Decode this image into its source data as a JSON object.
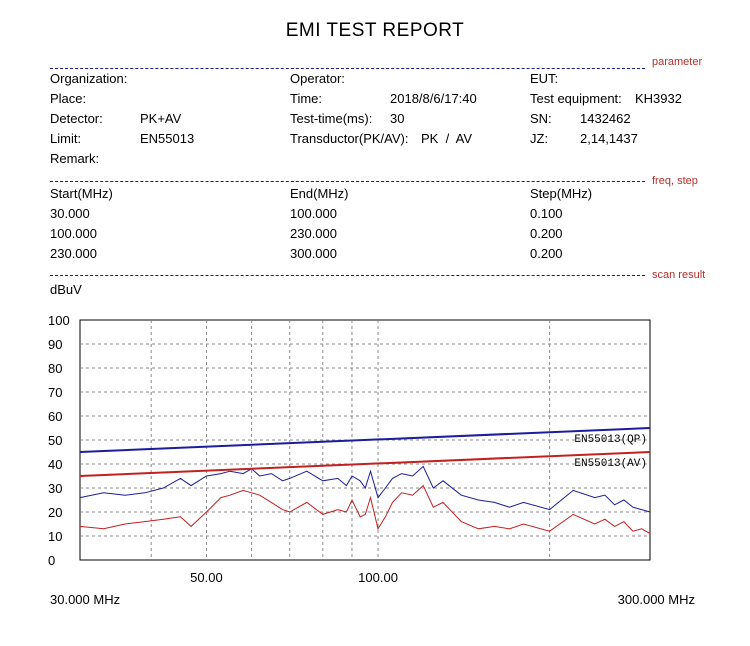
{
  "report": {
    "title": "EMI TEST REPORT",
    "sections": {
      "parameter": "parameter",
      "freq_step": "freq, step",
      "scan_result": "scan result"
    },
    "parameters": {
      "organization_label": "Organization:",
      "place_label": "Place:",
      "detector_label": "Detector:",
      "detector_value": "PK+AV",
      "limit_label": "Limit:",
      "limit_value": "EN55013",
      "remark_label": "Remark:",
      "operator_label": "Operator:",
      "time_label": "Time:",
      "time_value": "2018/8/6/17:40",
      "test_time_label": "Test-time(ms):",
      "test_time_value": "30",
      "transductor_label": "Transductor(PK/AV):",
      "transductor_value": "PK  /  AV",
      "eut_label": "EUT:",
      "test_equipment_label": "Test equipment:",
      "test_equipment_value": "KH3932",
      "sn_label": "SN:",
      "sn_value": "1432462",
      "jz_label": "JZ:",
      "jz_value": "2,14,1437"
    },
    "freq_table": {
      "headers": [
        "Start(MHz)",
        "End(MHz)",
        "Step(MHz)"
      ],
      "rows": [
        [
          "30.000",
          "100.000",
          "0.100"
        ],
        [
          "100.000",
          "230.000",
          "0.200"
        ],
        [
          "230.000",
          "300.000",
          "0.200"
        ]
      ]
    }
  },
  "chart_data": {
    "type": "line",
    "ylabel": "dBuV",
    "ylim": [
      0,
      100
    ],
    "yticks": [
      "100",
      "90",
      "80",
      "70",
      "60",
      "50",
      "40",
      "30",
      "20",
      "10",
      "0"
    ],
    "x_scale": "log",
    "xlim": [
      30,
      300
    ],
    "xticks": [
      "50.00",
      "100.00"
    ],
    "x_start_label": "30.000 MHz",
    "x_end_label": "300.000 MHz",
    "grid": true,
    "colors": {
      "qp": "#1c1c9c",
      "av": "#c42020",
      "grid": "#888888"
    },
    "limits": [
      {
        "name": "EN55013(QP)",
        "x": [
          30,
          300
        ],
        "y": [
          45,
          55
        ]
      },
      {
        "name": "EN55013(AV)",
        "x": [
          30,
          300
        ],
        "y": [
          35,
          45
        ]
      }
    ],
    "series": [
      {
        "x": [
          30,
          33,
          36,
          39,
          42,
          45,
          47,
          50,
          53,
          55,
          58,
          60,
          62,
          65,
          68,
          70,
          75,
          80,
          85,
          88,
          90,
          93,
          95,
          97,
          100,
          103,
          106,
          110,
          115,
          120,
          125,
          130,
          140,
          150,
          160,
          170,
          180,
          200,
          220,
          240,
          250,
          260,
          270,
          280,
          290,
          300
        ],
        "y": [
          26,
          28,
          27,
          28,
          30,
          34,
          31,
          35,
          36,
          37,
          36,
          38,
          35,
          36,
          33,
          34,
          37,
          33,
          34,
          31,
          35,
          33,
          30,
          37,
          26,
          30,
          34,
          36,
          35,
          39,
          30,
          33,
          27,
          25,
          24,
          22,
          24,
          21,
          29,
          26,
          27,
          23,
          25,
          22,
          21,
          20
        ]
      },
      {
        "x": [
          30,
          33,
          36,
          39,
          42,
          45,
          47,
          50,
          53,
          55,
          58,
          60,
          62,
          65,
          68,
          70,
          75,
          80,
          85,
          88,
          90,
          93,
          95,
          97,
          100,
          103,
          106,
          110,
          115,
          120,
          125,
          130,
          140,
          150,
          160,
          170,
          180,
          200,
          220,
          240,
          250,
          260,
          270,
          280,
          290,
          300
        ],
        "y": [
          14,
          13,
          15,
          16,
          17,
          18,
          14,
          20,
          26,
          27,
          29,
          28,
          27,
          24,
          21,
          20,
          24,
          19,
          21,
          20,
          25,
          18,
          19,
          26,
          13,
          18,
          24,
          28,
          27,
          31,
          22,
          24,
          16,
          13,
          14,
          13,
          15,
          12,
          19,
          15,
          17,
          14,
          16,
          12,
          13,
          11
        ]
      }
    ]
  }
}
